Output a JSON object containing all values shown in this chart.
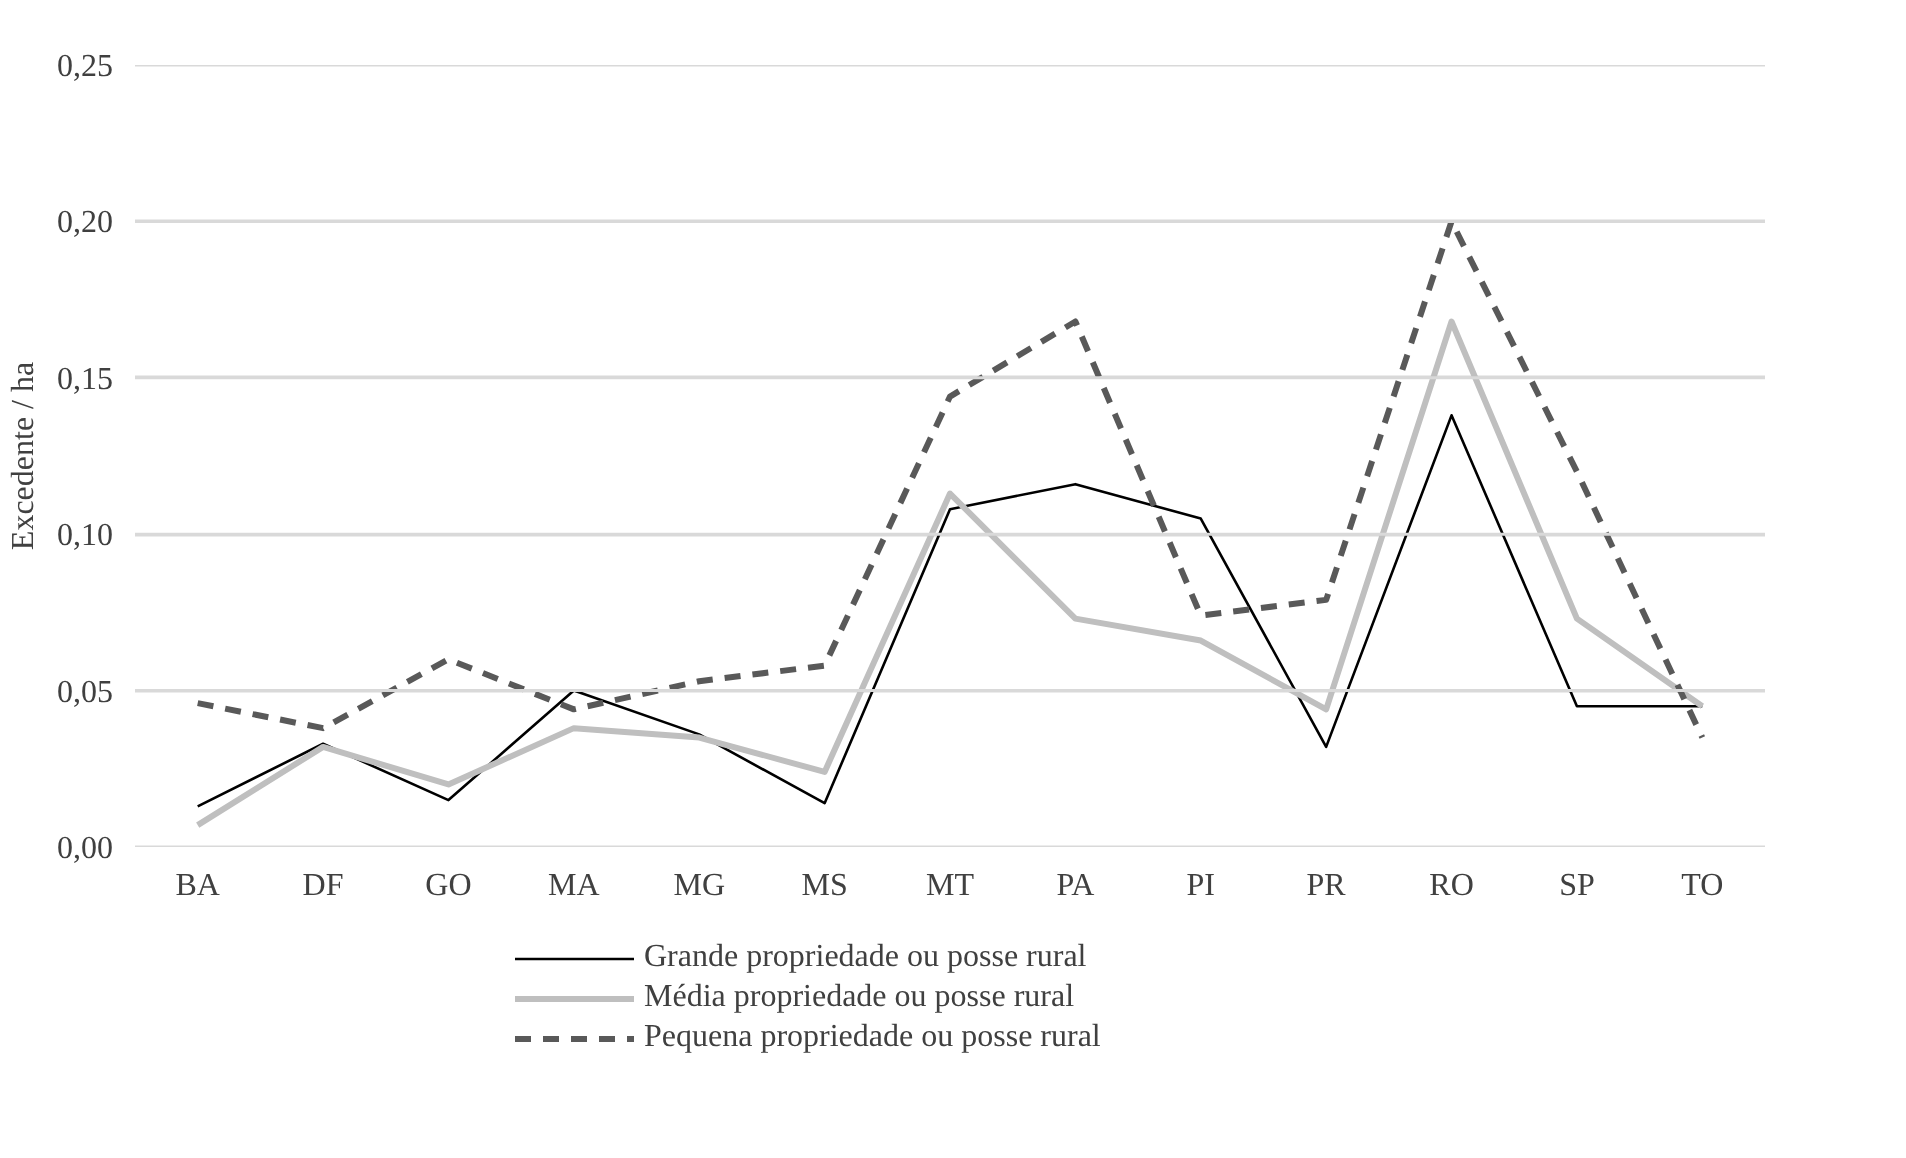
{
  "chart_data": {
    "type": "line",
    "ylabel": "Excedente / ha",
    "categories": [
      "BA",
      "DF",
      "GO",
      "MA",
      "MG",
      "MS",
      "MT",
      "PA",
      "PI",
      "PR",
      "RO",
      "SP",
      "TO"
    ],
    "series": [
      {
        "name": "Grande propriedade ou posse rural",
        "color": "#000000",
        "line_style": "solid",
        "values": [
          0.013,
          0.033,
          0.015,
          0.05,
          0.036,
          0.014,
          0.108,
          0.116,
          0.105,
          0.032,
          0.138,
          0.045,
          0.045
        ]
      },
      {
        "name": "Média propriedade ou posse rural",
        "color": "#bfbfbf",
        "line_style": "solid",
        "values": [
          0.007,
          0.032,
          0.02,
          0.038,
          0.035,
          0.024,
          0.113,
          0.073,
          0.066,
          0.044,
          0.168,
          0.073,
          0.045
        ]
      },
      {
        "name": "Pequena propriedade ou posse rural",
        "color": "#595959",
        "line_style": "dashed",
        "values": [
          0.046,
          0.038,
          0.06,
          0.044,
          0.053,
          0.058,
          0.144,
          0.168,
          0.074,
          0.079,
          0.2,
          0.12,
          0.035
        ]
      }
    ],
    "ylim": [
      0,
      0.25
    ],
    "yticks": [
      {
        "value": 0,
        "label": "0,00"
      },
      {
        "value": 0.05,
        "label": "0,05"
      },
      {
        "value": 0.1,
        "label": "0,10"
      },
      {
        "value": 0.15,
        "label": "0,15"
      },
      {
        "value": 0.2,
        "label": "0,20"
      },
      {
        "value": 0.25,
        "label": "0,25"
      }
    ],
    "grid": "y",
    "legend": "bottom"
  }
}
